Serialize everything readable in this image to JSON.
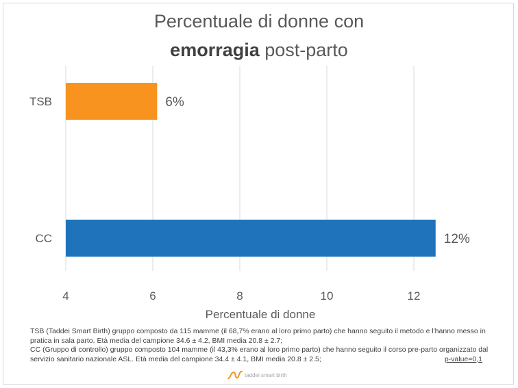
{
  "title": {
    "line1": "Percentuale di donne con",
    "line2_bold": "emorragia",
    "line2_rest": " post-parto"
  },
  "chart_data": {
    "type": "bar",
    "orientation": "horizontal",
    "categories": [
      "TSB",
      "CC"
    ],
    "values": [
      6.1,
      12.5
    ],
    "data_labels": [
      "6%",
      "12%"
    ],
    "colors": [
      "#F7931E",
      "#1F73BA"
    ],
    "xlabel": "Percentuale di donne",
    "xlim": [
      4,
      13
    ],
    "xticks": [
      4,
      6,
      8,
      10,
      12
    ],
    "grid": true,
    "legend": "none"
  },
  "notes": {
    "line1": "TSB (Taddei Smart Birth) gruppo composto da 115 mamme (il 68,7% erano al loro primo parto) che hanno seguito il metodo e l'hanno messo in pratica in sala parto. Età media del campione 34.6 ± 4.2, BMI media 20.8 ± 2.7;",
    "line2": "CC (Gruppo di controllo) gruppo composto 104 mamme (il 43,3% erano al loro primo parto) che hanno seguito il corso pre-parto organizzato dal servizio sanitario nazionale ASL. Età media del campione 34.4 ± 4.1, BMI media 20.8 ± 2.5;",
    "pvalue": "p-value=0,1"
  },
  "logo": {
    "text": "taddei smart birth",
    "color": "#F7931E"
  }
}
